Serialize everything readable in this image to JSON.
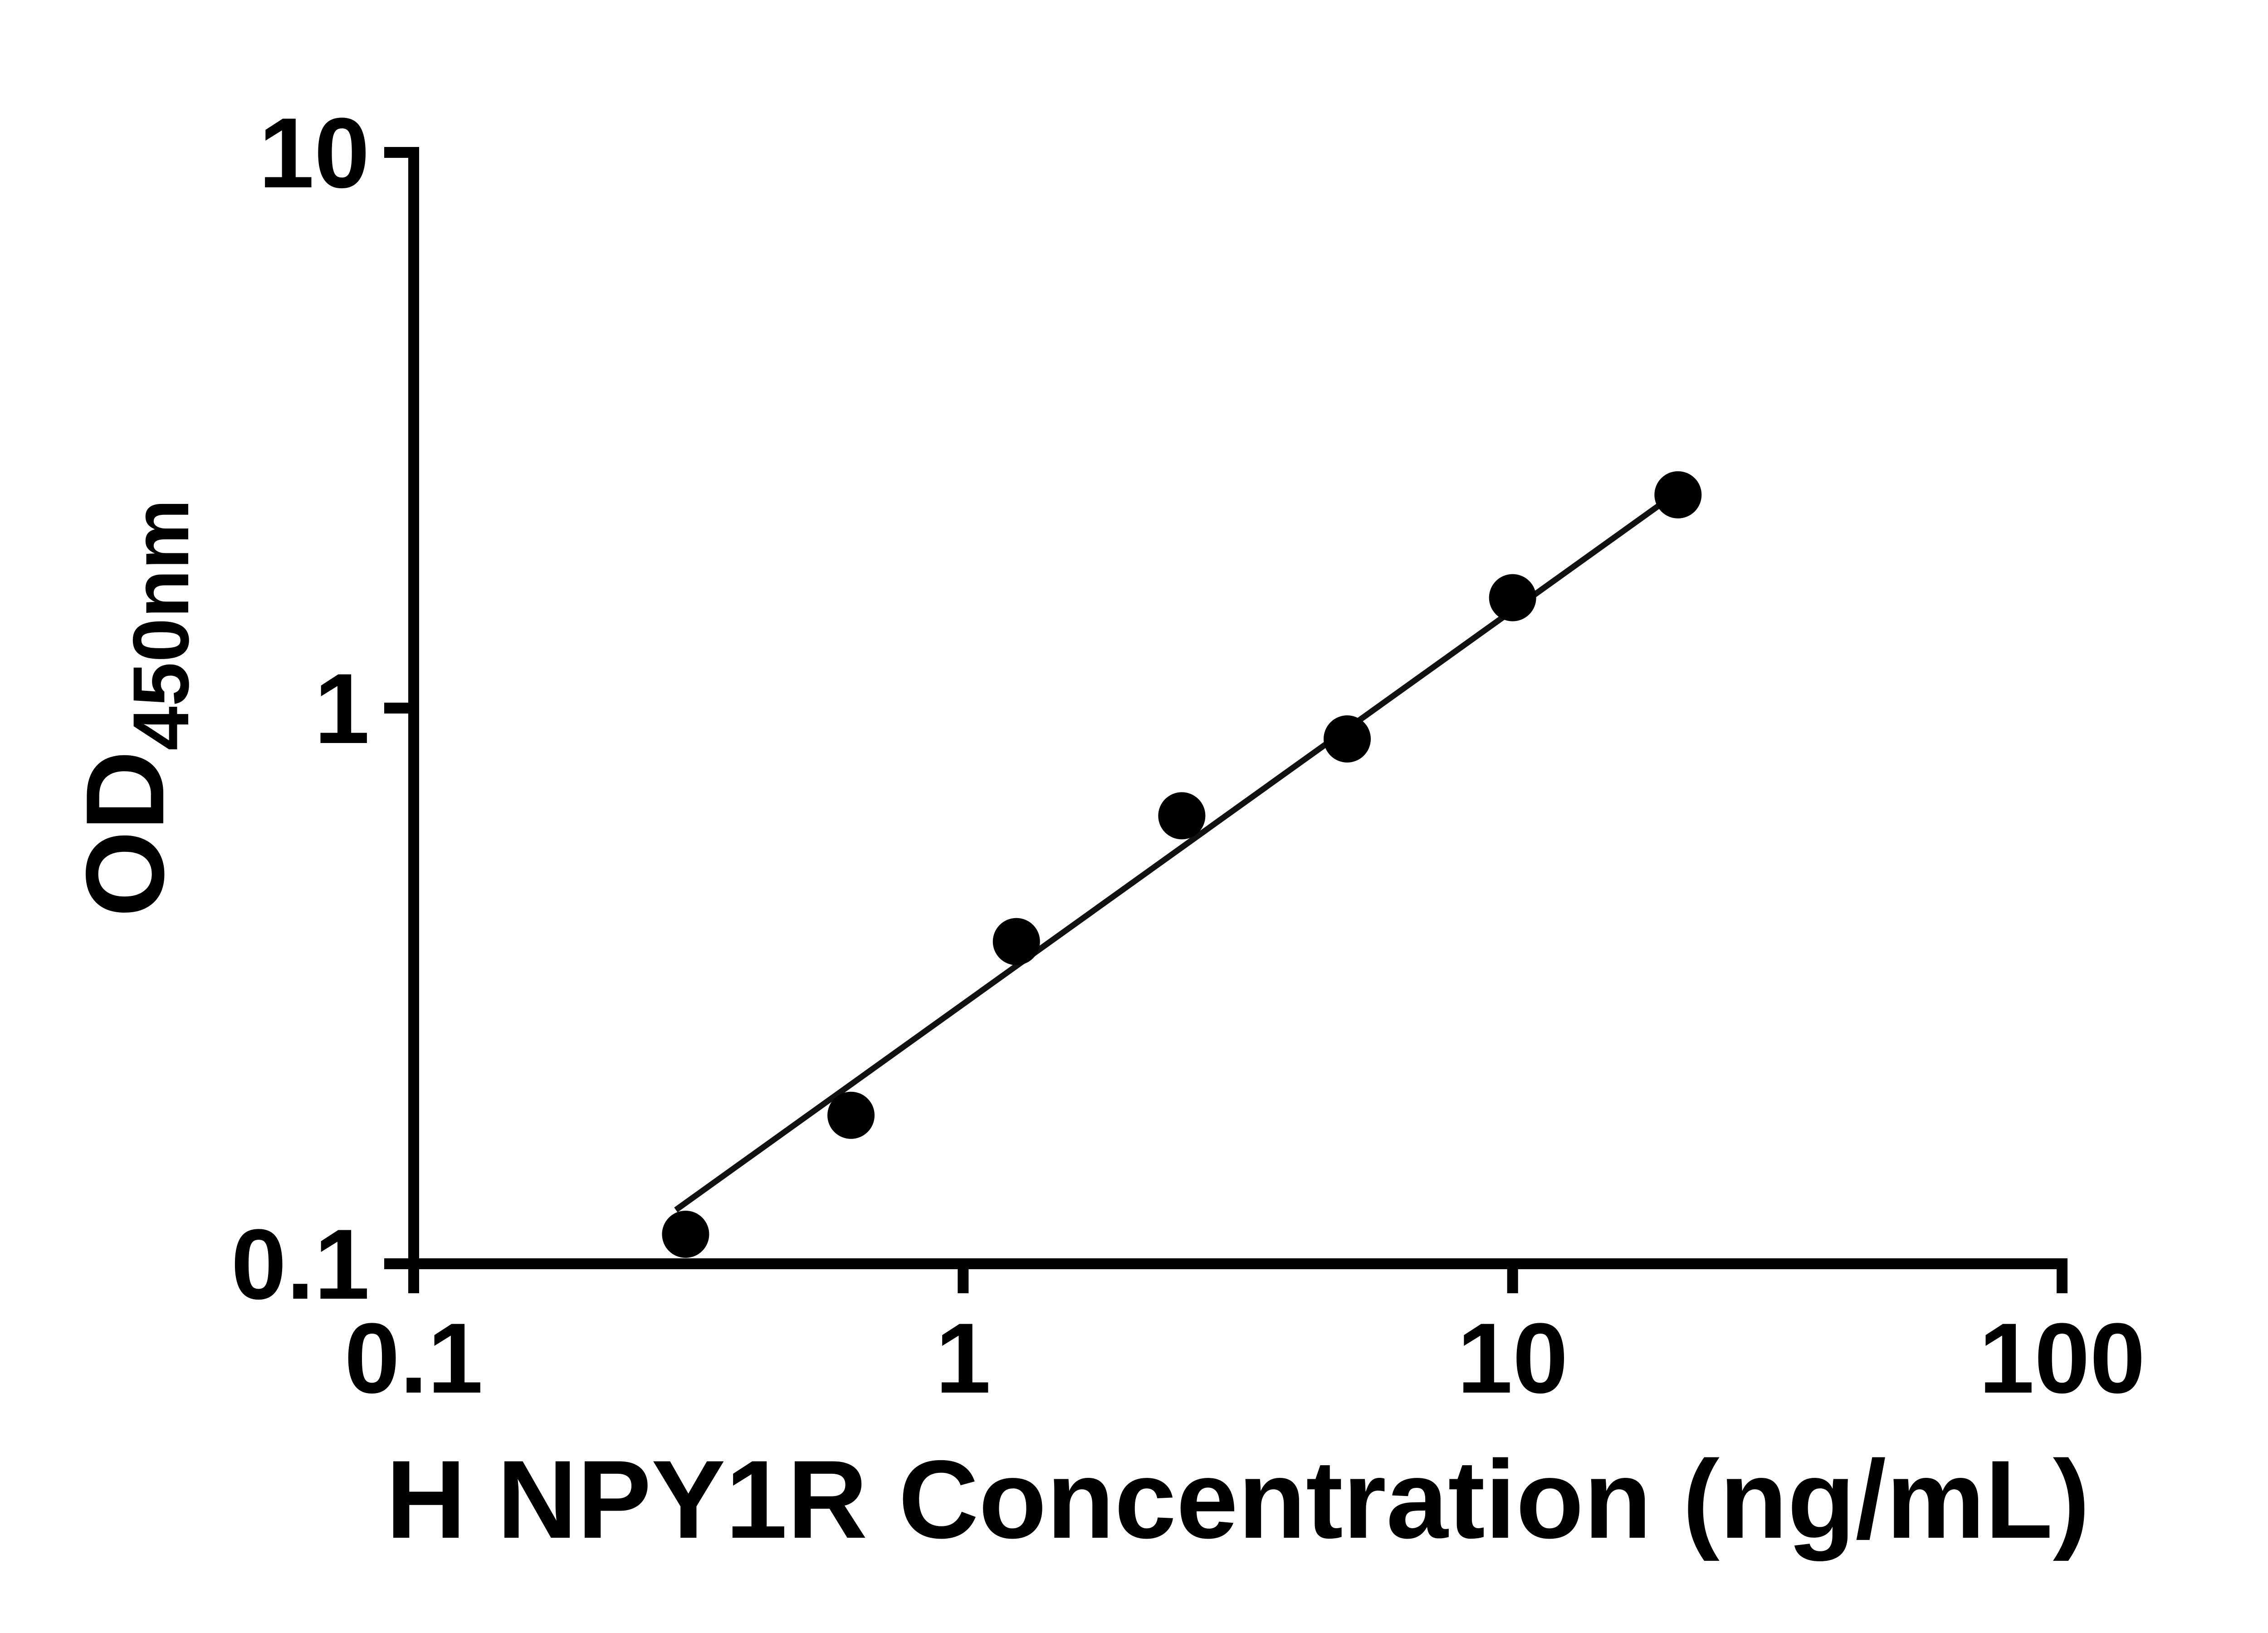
{
  "figure": {
    "background": "#ffffff"
  },
  "chart_data": {
    "type": "scatter",
    "title": "",
    "xlabel": "H NPY1R Concentration (ng/mL)",
    "ylabel": "OD",
    "ylabel_subscript": "450nm",
    "x_scale": "log",
    "y_scale": "log",
    "xlim": [
      0.1,
      100
    ],
    "ylim": [
      0.1,
      10
    ],
    "grid": false,
    "legend_position": "none",
    "x_ticks": [
      {
        "value": 0.1,
        "label": "0.1"
      },
      {
        "value": 1,
        "label": "1"
      },
      {
        "value": 10,
        "label": "10"
      },
      {
        "value": 100,
        "label": "100"
      }
    ],
    "y_ticks": [
      {
        "value": 0.1,
        "label": "0.1"
      },
      {
        "value": 1,
        "label": "1"
      },
      {
        "value": 10,
        "label": "10"
      }
    ],
    "series": [
      {
        "name": "regression-fit-line",
        "type": "line",
        "x": [
          0.3,
          20
        ],
        "y": [
          0.125,
          2.45
        ],
        "color": "#111111"
      },
      {
        "name": "H NPY1R standard points",
        "type": "scatter",
        "marker": "circle",
        "x": [
          0.3125,
          0.625,
          1.25,
          2.5,
          5,
          10,
          20
        ],
        "y": [
          0.113,
          0.185,
          0.38,
          0.64,
          0.88,
          1.58,
          2.42
        ],
        "color": "#000000"
      }
    ],
    "colors": {
      "axis": "#000000",
      "marker": "#000000",
      "line": "#111111",
      "text": "#000000"
    }
  }
}
